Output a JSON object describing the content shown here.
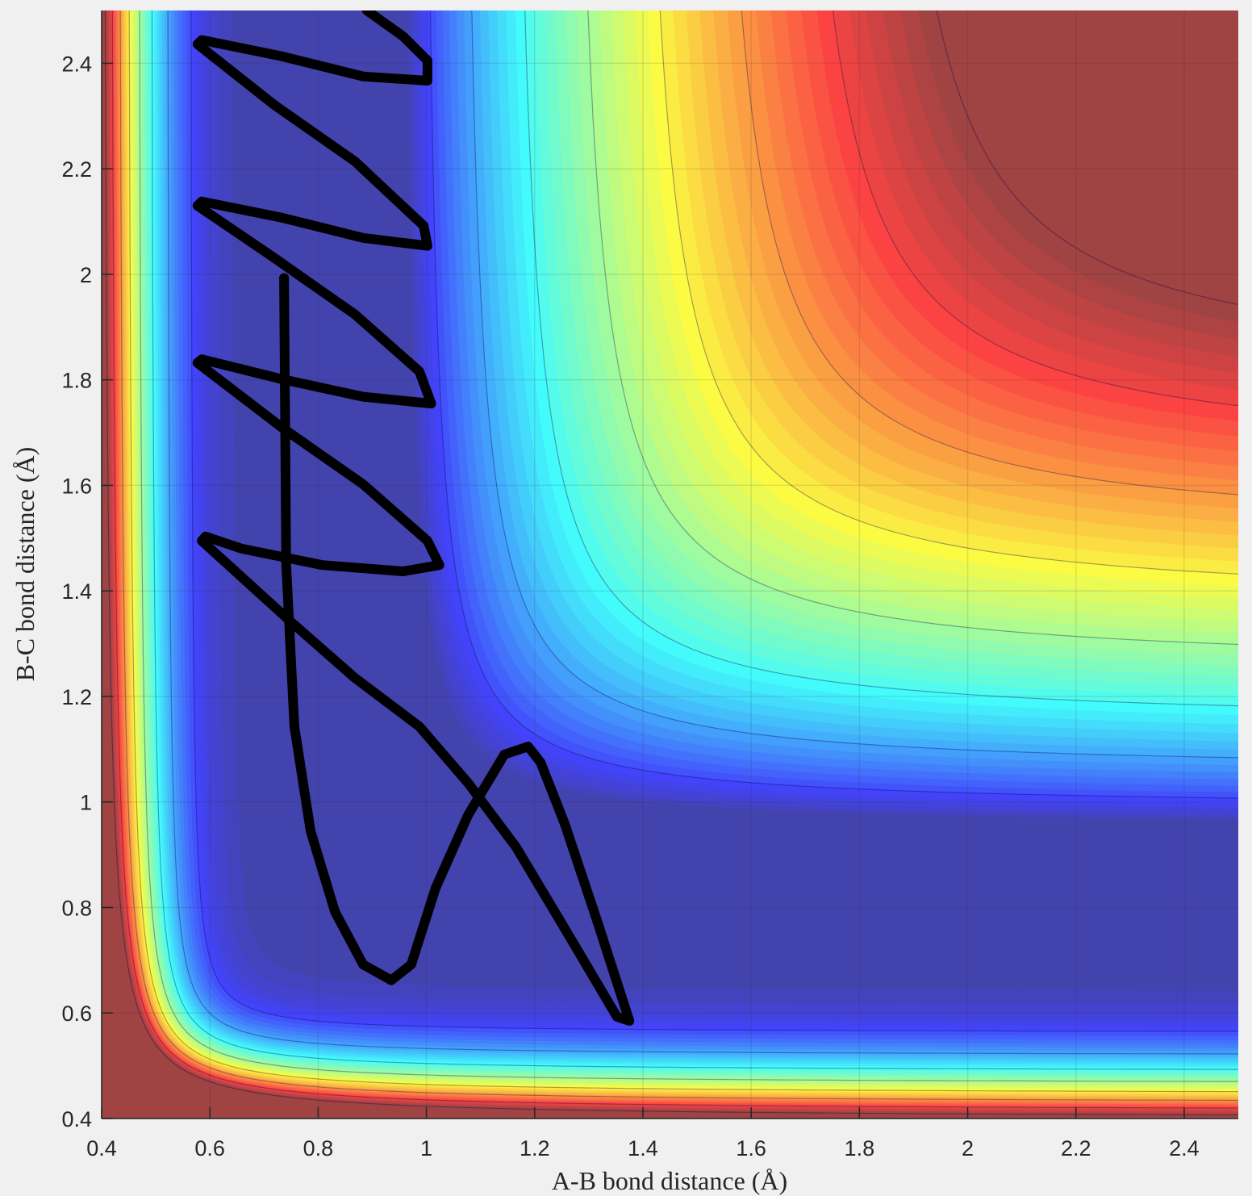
{
  "chart_data": {
    "type": "contour",
    "xlabel": "A-B bond distance (Å)",
    "ylabel": "B-C bond distance (Å)",
    "xlim": [
      0.4,
      2.5
    ],
    "ylim": [
      0.4,
      2.5
    ],
    "xticks": [
      0.4,
      0.6,
      0.8,
      1,
      1.2,
      1.4,
      1.6,
      1.8,
      2,
      2.2,
      2.4
    ],
    "yticks": [
      0.4,
      0.6,
      0.8,
      1,
      1.2,
      1.4,
      1.6,
      1.8,
      2,
      2.2,
      2.4
    ],
    "grid": true,
    "series": [
      {
        "color": "#000000",
        "x": [
          0.737,
          0.741,
          0.756,
          0.786,
          0.831,
          0.883,
          0.935,
          0.972,
          1.017,
          1.077,
          1.144,
          1.188,
          1.211,
          1.255,
          1.315,
          1.375,
          1.352,
          1.255,
          1.166,
          1.077,
          0.987,
          0.868,
          0.749,
          0.585,
          0.592,
          0.659,
          0.808,
          0.957,
          1.024,
          1.002,
          0.883,
          0.734,
          0.577,
          0.585,
          0.734,
          0.883,
          1.009,
          0.987,
          0.868,
          0.719,
          0.577,
          0.585,
          0.734,
          0.883,
          1.002,
          0.995,
          0.868,
          0.719,
          0.577,
          0.585,
          0.734,
          0.883,
          1.002,
          1.002,
          0.957,
          0.89
        ],
        "values": [
          1.993,
          1.449,
          1.143,
          0.945,
          0.792,
          0.692,
          0.662,
          0.692,
          0.837,
          0.975,
          1.09,
          1.105,
          1.075,
          0.96,
          0.776,
          0.585,
          0.593,
          0.761,
          0.914,
          1.036,
          1.143,
          1.235,
          1.342,
          1.495,
          1.503,
          1.48,
          1.449,
          1.437,
          1.449,
          1.495,
          1.602,
          1.709,
          1.832,
          1.839,
          1.801,
          1.768,
          1.755,
          1.816,
          1.924,
          2.031,
          2.13,
          2.138,
          2.107,
          2.069,
          2.054,
          2.092,
          2.214,
          2.321,
          2.436,
          2.444,
          2.413,
          2.375,
          2.367,
          2.405,
          2.451,
          2.5
        ]
      }
    ]
  }
}
